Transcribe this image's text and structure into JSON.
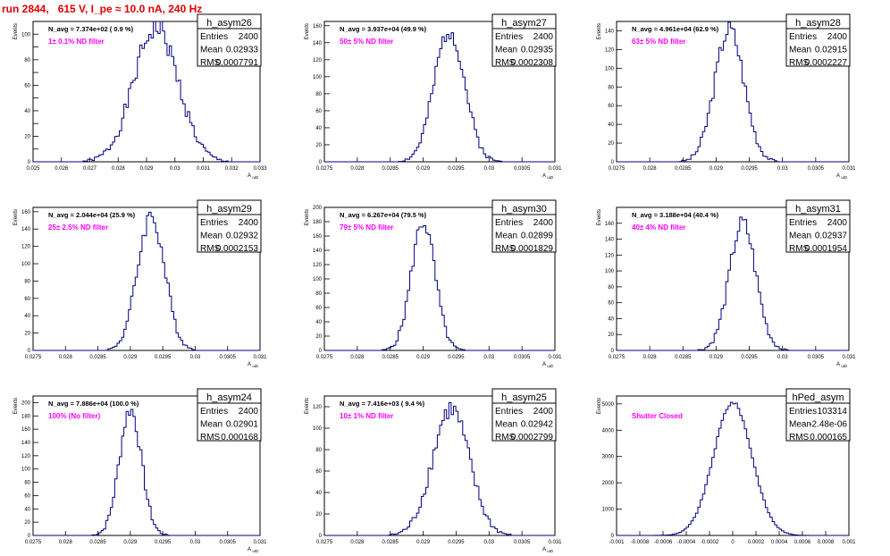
{
  "title": "run 2844,   615 V, I_pe ≈ 10.0 nA, 240 Hz",
  "stats_labels": {
    "entries": "Entries",
    "mean": "Mean",
    "rms": "RMS"
  },
  "colors": {
    "hist": "#000080",
    "filter": "#ff00ff",
    "title": "#e00000"
  },
  "chart_data": [
    {
      "type": "histogram",
      "name": "h_asym26",
      "n_avg": "N_avg = 7.374e+02 ( 0.9 %)",
      "filter": "1± 0.1% ND filter",
      "entries": "2400",
      "mean": "0.02933",
      "rms": "0.0007791",
      "xlabel": "A_uiD",
      "ylabel": "Events",
      "xlim": [
        0.025,
        0.033
      ],
      "ylim": [
        0,
        110
      ],
      "xticks": [
        0.025,
        0.026,
        0.027,
        0.028,
        0.029,
        0.03,
        0.031,
        0.032,
        0.033
      ],
      "xtick_labels": [
        "0.025",
        "0.026",
        "0.027",
        "0.028",
        "0.029",
        "0.03",
        "0.031",
        "0.032",
        "0.033"
      ],
      "yticks": [
        0,
        10,
        20,
        30,
        40,
        50,
        60,
        70,
        80,
        90,
        100
      ],
      "ytick_labels": [
        "0",
        "",
        "20",
        "",
        "40",
        "",
        "60",
        "",
        "80",
        "",
        "100"
      ],
      "peak": {
        "x": 0.02933,
        "y": 105
      },
      "sigma": 0.00078
    },
    {
      "type": "histogram",
      "name": "h_asym27",
      "n_avg": "N_avg = 3.937e+04 (49.9 %)",
      "filter": "50± 5% ND filter",
      "entries": "2400",
      "mean": "0.02935",
      "rms": "0.0002308",
      "xlabel": "A_uiD",
      "ylabel": "Events",
      "xlim": [
        0.0275,
        0.031
      ],
      "ylim": [
        0,
        165
      ],
      "xticks": [
        0.0275,
        0.028,
        0.0285,
        0.029,
        0.0295,
        0.03,
        0.0305,
        0.031
      ],
      "xtick_labels": [
        "0.0275",
        "0.028",
        "0.0285",
        "0.029",
        "0.0295",
        "0.03",
        "0.0305",
        "0.031"
      ],
      "yticks": [
        0,
        20,
        40,
        60,
        80,
        100,
        120,
        140,
        160
      ],
      "ytick_labels": [
        "0",
        "20",
        "40",
        "60",
        "80",
        "100",
        "120",
        "140",
        "160"
      ],
      "peak": {
        "x": 0.0294,
        "y": 155
      },
      "sigma": 0.00023
    },
    {
      "type": "histogram",
      "name": "h_asym28",
      "n_avg": "N_avg = 4.961e+04 (62.9 %)",
      "filter": "63± 5% ND filter",
      "entries": "2400",
      "mean": "0.02915",
      "rms": "0.0002227",
      "xlabel": "A_uiD",
      "ylabel": "Events",
      "xlim": [
        0.0275,
        0.031
      ],
      "ylim": [
        0,
        150
      ],
      "xticks": [
        0.0275,
        0.028,
        0.0285,
        0.029,
        0.0295,
        0.03,
        0.0305,
        0.031
      ],
      "xtick_labels": [
        "0.0275",
        "0.028",
        "0.0285",
        "0.029",
        "0.0295",
        "0.03",
        "0.0305",
        "0.031"
      ],
      "yticks": [
        0,
        20,
        40,
        60,
        80,
        100,
        120,
        140
      ],
      "ytick_labels": [
        "0",
        "20",
        "40",
        "60",
        "80",
        "100",
        "120",
        "140"
      ],
      "peak": {
        "x": 0.0292,
        "y": 142
      },
      "sigma": 0.00022
    },
    {
      "type": "histogram",
      "name": "h_asym29",
      "n_avg": "N_avg = 2.044e+04 (25.9 %)",
      "filter": "25± 2.5% ND filter",
      "entries": "2400",
      "mean": "0.02932",
      "rms": "0.0002153",
      "xlabel": "A_uiD",
      "ylabel": "Events",
      "xlim": [
        0.0275,
        0.031
      ],
      "ylim": [
        0,
        165
      ],
      "xticks": [
        0.0275,
        0.028,
        0.0285,
        0.029,
        0.0295,
        0.03,
        0.0305,
        0.031
      ],
      "xtick_labels": [
        "0.0275",
        "0.028",
        "0.0285",
        "0.029",
        "0.0295",
        "0.03",
        "0.0305",
        "0.031"
      ],
      "yticks": [
        0,
        20,
        40,
        60,
        80,
        100,
        120,
        140,
        160
      ],
      "ytick_labels": [
        "0",
        "20",
        "40",
        "60",
        "80",
        "100",
        "120",
        "140",
        "160"
      ],
      "peak": {
        "x": 0.02932,
        "y": 155
      },
      "sigma": 0.00021
    },
    {
      "type": "histogram",
      "name": "h_asym30",
      "n_avg": "N_avg = 6.267e+04 (79.5 %)",
      "filter": "79± 5% ND filter",
      "entries": "2400",
      "mean": "0.02899",
      "rms": "0.0001829",
      "xlabel": "A_uiD",
      "ylabel": "Events",
      "xlim": [
        0.0275,
        0.031
      ],
      "ylim": [
        0,
        200
      ],
      "xticks": [
        0.0275,
        0.028,
        0.0285,
        0.029,
        0.0295,
        0.03,
        0.0305,
        0.031
      ],
      "xtick_labels": [
        "0.0275",
        "0.028",
        "0.0285",
        "0.029",
        "0.0295",
        "0.03",
        "0.0305",
        "0.031"
      ],
      "yticks": [
        0,
        20,
        40,
        60,
        80,
        100,
        120,
        140,
        160,
        180,
        200
      ],
      "ytick_labels": [
        "0",
        "20",
        "40",
        "60",
        "80",
        "100",
        "120",
        "140",
        "160",
        "180",
        "200"
      ],
      "peak": {
        "x": 0.029,
        "y": 180
      },
      "sigma": 0.00018
    },
    {
      "type": "histogram",
      "name": "h_asym31",
      "n_avg": "N_avg = 3.188e+04 (40.4 %)",
      "filter": "40± 4% ND filter",
      "entries": "2400",
      "mean": "0.02937",
      "rms": "0.0001954",
      "xlabel": "A_uiD",
      "ylabel": "Events",
      "xlim": [
        0.0275,
        0.031
      ],
      "ylim": [
        0,
        180
      ],
      "xticks": [
        0.0275,
        0.028,
        0.0285,
        0.029,
        0.0295,
        0.03,
        0.0305,
        0.031
      ],
      "xtick_labels": [
        "0.0275",
        "0.028",
        "0.0285",
        "0.029",
        "0.0295",
        "0.03",
        "0.0305",
        "0.031"
      ],
      "yticks": [
        0,
        20,
        40,
        60,
        80,
        100,
        120,
        140,
        160
      ],
      "ytick_labels": [
        "0",
        "20",
        "40",
        "60",
        "80",
        "100",
        "120",
        "140",
        "160"
      ],
      "peak": {
        "x": 0.0294,
        "y": 160
      },
      "sigma": 0.0002
    },
    {
      "type": "histogram",
      "name": "h_asym24",
      "n_avg": "N_avg = 7.886e+04 (100.0 %)",
      "filter": "100% (No filter)",
      "entries": "2400",
      "mean": "0.02901",
      "rms": "0.000168",
      "xlabel": "A_uiD",
      "ylabel": "Events",
      "xlim": [
        0.0275,
        0.031
      ],
      "ylim": [
        0,
        210
      ],
      "xticks": [
        0.0275,
        0.028,
        0.0285,
        0.029,
        0.0295,
        0.03,
        0.0305,
        0.031
      ],
      "xtick_labels": [
        "0.0275",
        "0.028",
        "0.0285",
        "0.029",
        "0.0295",
        "0.03",
        "0.0305",
        "0.031"
      ],
      "yticks": [
        0,
        20,
        40,
        60,
        80,
        100,
        120,
        140,
        160,
        180,
        200
      ],
      "ytick_labels": [
        "0",
        "20",
        "40",
        "60",
        "80",
        "100",
        "120",
        "140",
        "160",
        "180",
        "200"
      ],
      "peak": {
        "x": 0.029,
        "y": 190
      },
      "sigma": 0.00017
    },
    {
      "type": "histogram",
      "name": "h_asym25",
      "n_avg": "N_avg = 7.416e+03 ( 9.4 %)",
      "filter": "10± 1% ND filter",
      "entries": "2400",
      "mean": "0.02942",
      "rms": "0.0002799",
      "xlabel": "A_uiD",
      "ylabel": "Events",
      "xlim": [
        0.0275,
        0.031
      ],
      "ylim": [
        0,
        130
      ],
      "xticks": [
        0.0275,
        0.028,
        0.0285,
        0.029,
        0.0295,
        0.03,
        0.0305,
        0.031
      ],
      "xtick_labels": [
        "0.0275",
        "0.028",
        "0.0285",
        "0.029",
        "0.0295",
        "0.03",
        "0.0305",
        "0.031"
      ],
      "yticks": [
        0,
        20,
        40,
        60,
        80,
        100,
        120
      ],
      "ytick_labels": [
        "0",
        "20",
        "40",
        "60",
        "80",
        "100",
        "120"
      ],
      "peak": {
        "x": 0.02942,
        "y": 118
      },
      "sigma": 0.00028
    },
    {
      "type": "histogram",
      "name": "hPed_asym",
      "n_avg": "",
      "filter": "Shutter Closed",
      "entries": "103314",
      "mean": "-2.48e-06",
      "rms": "0.000165",
      "xlabel": "",
      "ylabel": "Events",
      "xlim": [
        -0.001,
        0.001
      ],
      "ylim": [
        0,
        5300
      ],
      "xticks": [
        -0.001,
        -0.0008,
        -0.0006,
        -0.0004,
        -0.0002,
        0,
        0.0002,
        0.0004,
        0.0006,
        0.0008,
        0.001
      ],
      "xtick_labels": [
        "-0.001",
        "-0.0008",
        "-0.0006",
        "-0.0004",
        "-0.0002",
        "0",
        "0.0002",
        "0.0004",
        "0.0006",
        "0.0008",
        "0.001"
      ],
      "yticks": [
        0,
        1000,
        2000,
        3000,
        4000,
        5000
      ],
      "ytick_labels": [
        "0",
        "1000",
        "2000",
        "3000",
        "4000",
        "5000"
      ],
      "peak": {
        "x": 0.0,
        "y": 5050
      },
      "sigma": 0.000165
    }
  ]
}
